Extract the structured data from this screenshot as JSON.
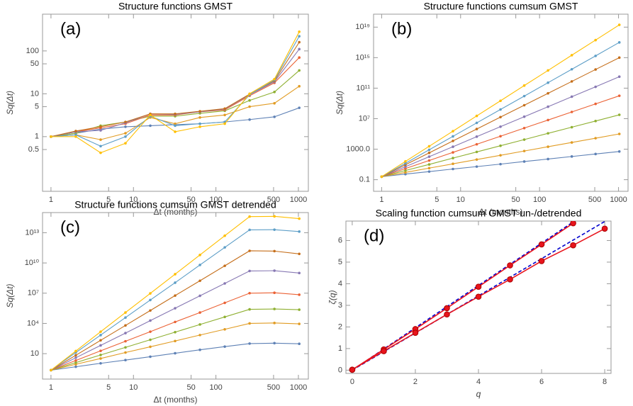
{
  "chart_data": [
    {
      "type": "line",
      "title": "Structure functions GMST",
      "panel_label": "(a)",
      "x_label": "Δt (months)",
      "y_label": "Sq(Δt)",
      "xscale": "log",
      "yscale": "log",
      "xlim": [
        0.79,
        1320
      ],
      "ylim": [
        0.053,
        720
      ],
      "xticks": [
        1,
        5,
        10,
        50,
        100,
        500,
        1000
      ],
      "yticks": [
        0.5,
        1,
        5,
        10,
        50,
        100
      ],
      "markers": true,
      "x": [
        1,
        2,
        4,
        8,
        16,
        32,
        64,
        128,
        256,
        512,
        1024
      ],
      "series": [
        {
          "color": "#5e81b5",
          "values": [
            1,
            1.2,
            1.5,
            1.7,
            1.8,
            1.9,
            2.0,
            2.2,
            2.5,
            2.9,
            4.7
          ]
        },
        {
          "color": "#e19c24",
          "values": [
            1,
            1.1,
            0.85,
            1.2,
            2.8,
            2.0,
            2.8,
            3.2,
            5,
            6,
            15
          ]
        },
        {
          "color": "#8fb032",
          "values": [
            1,
            1.2,
            1.8,
            2.2,
            3,
            3,
            3.5,
            4,
            7,
            11,
            35
          ]
        },
        {
          "color": "#eb6235",
          "values": [
            1,
            1.3,
            1.6,
            2.0,
            3.2,
            3.2,
            3.8,
            4.2,
            9,
            18,
            70
          ]
        },
        {
          "color": "#8778b3",
          "values": [
            1,
            1.3,
            1.4,
            2.1,
            3.4,
            3.3,
            3.8,
            4.4,
            9.5,
            19,
            110
          ]
        },
        {
          "color": "#c56e1a",
          "values": [
            1,
            1.35,
            1.7,
            2.2,
            3.4,
            3.4,
            3.9,
            4.5,
            9.8,
            20,
            160
          ]
        },
        {
          "color": "#5d9ec7",
          "values": [
            1,
            1.1,
            0.6,
            1.0,
            3.0,
            1.8,
            2.0,
            2.2,
            9.5,
            21,
            220
          ]
        },
        {
          "color": "#ffbf00",
          "values": [
            1,
            1.0,
            0.42,
            0.7,
            3.2,
            1.3,
            1.7,
            2.0,
            10,
            22,
            280
          ]
        }
      ]
    },
    {
      "type": "line",
      "title": "Structure functions cumsum GMST",
      "panel_label": "(b)",
      "x_label": "Δt (months)",
      "y_label": "Sq(Δt)",
      "xscale": "log",
      "yscale": "log",
      "xlim": [
        0.79,
        1320
      ],
      "ylim": [
        0.003,
        5e+20
      ],
      "xticks": [
        1,
        5,
        10,
        50,
        100,
        500,
        1000
      ],
      "yticks": [
        0.1,
        {
          "value": 1000,
          "label": "1000.0"
        },
        {
          "value": 10000000.0,
          "label": "10⁷"
        },
        {
          "value": 100000000000.0,
          "label": "10¹¹"
        },
        {
          "value": 1000000000000000.0,
          "label": "10¹⁵"
        },
        {
          "value": 1e+19,
          "label": "10¹⁹"
        }
      ],
      "markers": true,
      "x": [
        1,
        2,
        4,
        8,
        16,
        32,
        64,
        128,
        256,
        512,
        1024
      ],
      "series": [
        {
          "color": "#5e81b5",
          "values": [
            0.25,
            0.54,
            1.15,
            2.5,
            5.2,
            11,
            24,
            51,
            110,
            234,
            500
          ]
        },
        {
          "color": "#e19c24",
          "values": [
            0.25,
            0.91,
            3.3,
            12,
            44,
            158,
            575,
            2090,
            7590,
            27500,
            100000.0
          ]
        },
        {
          "color": "#8fb032",
          "values": [
            0.25,
            1.6,
            10,
            68,
            437,
            2820,
            18000.0,
            120000.0,
            760000.0,
            4900000.0,
            32000000.0
          ]
        },
        {
          "color": "#eb6235",
          "values": [
            0.25,
            2.9,
            33,
            380,
            4400,
            50000.0,
            580000.0,
            6600000.0,
            76000000.0,
            870000000.0,
            10000000000.0
          ]
        },
        {
          "color": "#8778b3",
          "values": [
            0.25,
            5.1,
            105,
            2100,
            44000.0,
            890000.0,
            18000000.0,
            370000000.0,
            7600000000.0,
            150000000000.0,
            3200000000000.0
          ]
        },
        {
          "color": "#c56e1a",
          "values": [
            0.25,
            9.1,
            330,
            12000.0,
            440000.0,
            16000000.0,
            580000000.0,
            21000000000.0,
            760000000000.0,
            28000000000000.0,
            1000000000000000.0
          ]
        },
        {
          "color": "#5d9ec7",
          "values": [
            0.25,
            14,
            830,
            48000.0,
            2800000.0,
            160000000.0,
            9100000000.0,
            520000000000.0,
            30000000000000.0,
            1700000000000000.0,
            1e+17
          ]
        },
        {
          "color": "#ffbf00",
          "values": [
            0.25,
            25,
            2400,
            230000.0,
            23000000.0,
            2200000000.0,
            220000000000.0,
            21000000000000.0,
            2100000000000000.0,
            2e+17,
            2e+19
          ]
        }
      ]
    },
    {
      "type": "line",
      "title": "Structure functions cumsum GMST detrended",
      "panel_label": "(c)",
      "x_label": "Δt (months)",
      "y_label": "Sq(Δt)",
      "xscale": "log",
      "yscale": "log",
      "xlim": [
        0.79,
        1320
      ],
      "ylim": [
        0.03,
        1000000000000000.0
      ],
      "xticks": [
        1,
        5,
        10,
        50,
        100,
        500,
        1000
      ],
      "yticks": [
        10,
        {
          "value": 10000.0,
          "label": "10⁴"
        },
        {
          "value": 10000000.0,
          "label": "10⁷"
        },
        {
          "value": 10000000000.0,
          "label": "10¹⁰"
        },
        {
          "value": 10000000000000.0,
          "label": "10¹³"
        }
      ],
      "markers": true,
      "x": [
        1,
        2,
        4,
        8,
        16,
        32,
        64,
        128,
        256,
        512,
        1024
      ],
      "series": [
        {
          "color": "#5e81b5",
          "values": [
            0.23,
            0.5,
            1.1,
            2.3,
            5,
            11,
            24,
            50,
            100,
            110,
            95
          ]
        },
        {
          "color": "#e19c24",
          "values": [
            0.23,
            0.88,
            3.3,
            13,
            48,
            180,
            700,
            2600,
            10000.0,
            11000.0,
            9000.0
          ]
        },
        {
          "color": "#8fb032",
          "values": [
            0.23,
            1.3,
            7.4,
            42,
            240,
            1360,
            7800,
            44000.0,
            250000.0,
            270000.0,
            230000.0
          ]
        },
        {
          "color": "#eb6235",
          "values": [
            0.23,
            2.1,
            19,
            170,
            1500,
            14000.0,
            120000.0,
            1100000.0,
            10000000.0,
            11000000.0,
            7000000.0
          ]
        },
        {
          "color": "#8778b3",
          "values": [
            0.23,
            3.9,
            66,
            1100,
            19000.0,
            320000.0,
            5500000.0,
            93000000.0,
            1600000000.0,
            1700000000.0,
            1000000000.0
          ]
        },
        {
          "color": "#c56e1a",
          "values": [
            0.23,
            6.9,
            210,
            6300,
            190000.0,
            5800000.0,
            170000000.0,
            5200000000.0,
            160000000000.0,
            150000000000.0,
            80000000000.0
          ]
        },
        {
          "color": "#5d9ec7",
          "values": [
            0.23,
            13,
            690,
            38000.0,
            2100000.0,
            110000000.0,
            6300000000.0,
            350000000000.0,
            19000000000000.0,
            20000000000000.0,
            13000000000000.0
          ]
        },
        {
          "color": "#ffbf00",
          "values": [
            0.23,
            18,
            1500,
            120000.0,
            9500000.0,
            770000000.0,
            62000000000.0,
            5000000000000.0,
            400000000000000.0,
            420000000000000.0,
            250000000000000.0
          ]
        }
      ]
    },
    {
      "type": "line",
      "title": "Scaling function cumsum GMST un-/detrended",
      "panel_label": "(d)",
      "x_label": "q",
      "y_label": "ζ(q)",
      "xscale": "linear",
      "yscale": "linear",
      "xlim": [
        -0.2,
        8.2
      ],
      "ylim": [
        -0.15,
        6.9
      ],
      "xticks": [
        0,
        2,
        4,
        6,
        8
      ],
      "yticks": [
        0,
        1,
        2,
        3,
        4,
        5,
        6
      ],
      "x": [
        0,
        1,
        2,
        3,
        4,
        5,
        6,
        7,
        8
      ],
      "series": [
        {
          "color": "#0000cc",
          "dash": true,
          "values": [
            0,
            0.98,
            1.96,
            2.94,
            3.92,
            4.9,
            5.88,
            6.86,
            7.84
          ]
        },
        {
          "color": "#0000cc",
          "dash": true,
          "values": [
            0,
            0.86,
            1.72,
            2.58,
            3.44,
            4.3,
            5.16,
            6.02,
            6.88
          ]
        },
        {
          "color": "#e8141c",
          "markers": true,
          "values": [
            0.02,
            0.96,
            1.9,
            2.87,
            3.86,
            4.85,
            5.82,
            6.8,
            null
          ]
        },
        {
          "color": "#e8141c",
          "markers": true,
          "values": [
            0.02,
            0.88,
            1.73,
            2.58,
            3.4,
            4.2,
            5.05,
            5.78,
            6.55
          ]
        }
      ]
    }
  ]
}
